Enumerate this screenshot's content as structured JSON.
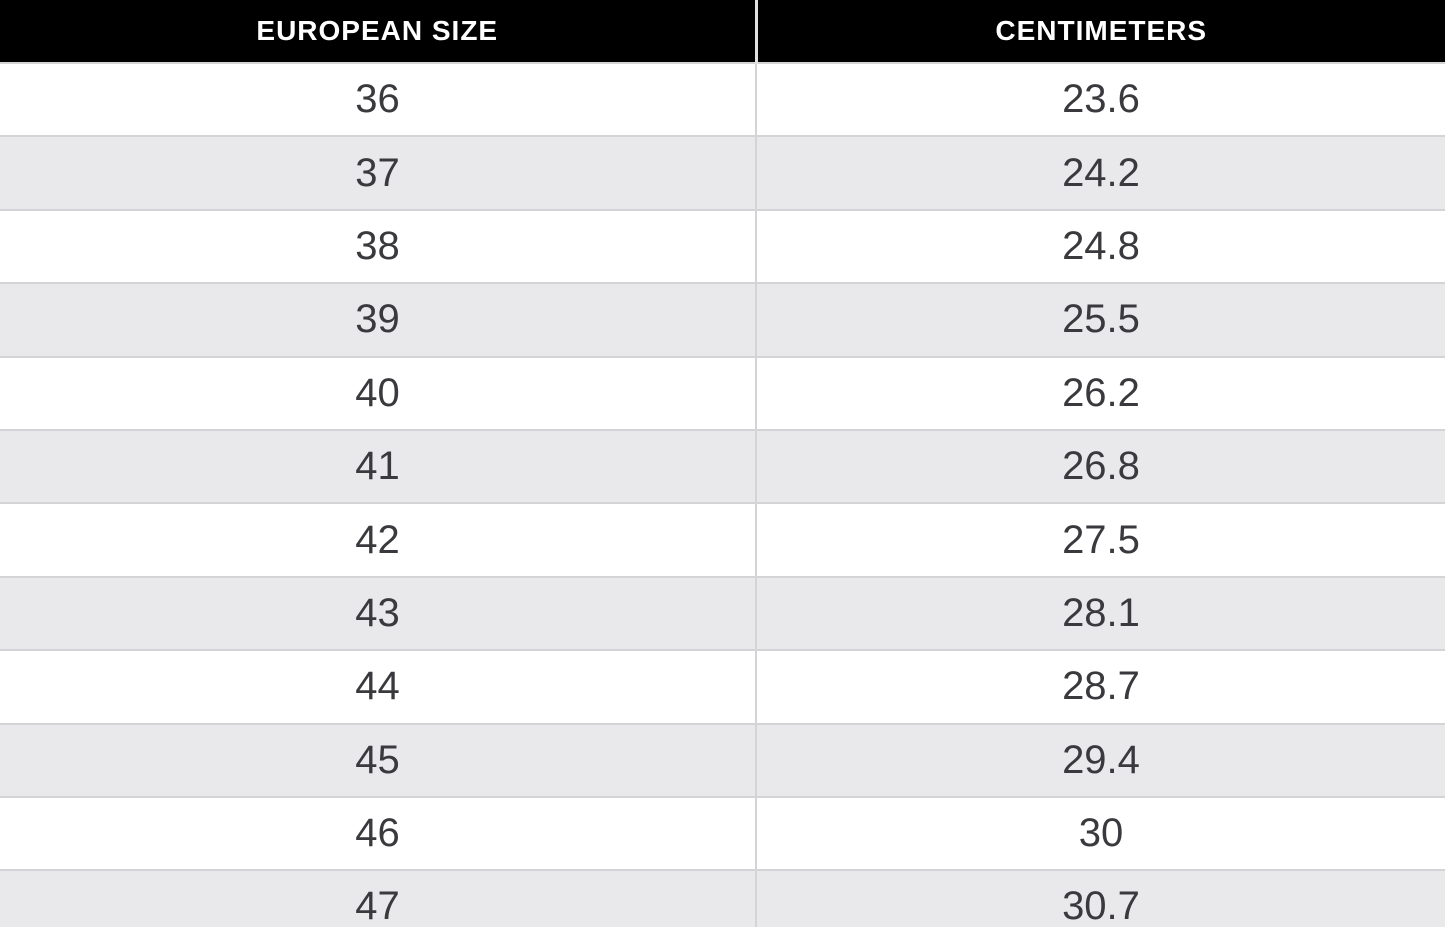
{
  "chart_data": {
    "type": "table",
    "columns": [
      "EUROPEAN SIZE",
      "CENTIMETERS"
    ],
    "rows": [
      [
        "36",
        "23.6"
      ],
      [
        "37",
        "24.2"
      ],
      [
        "38",
        "24.8"
      ],
      [
        "39",
        "25.5"
      ],
      [
        "40",
        "26.2"
      ],
      [
        "41",
        "26.8"
      ],
      [
        "42",
        "27.5"
      ],
      [
        "43",
        "28.1"
      ],
      [
        "44",
        "28.7"
      ],
      [
        "45",
        "29.4"
      ],
      [
        "46",
        "30"
      ],
      [
        "47",
        "30.7"
      ]
    ]
  },
  "colors": {
    "header_bg": "#000000",
    "header_text": "#ffffff",
    "row_bg": "#ffffff",
    "row_alt_bg": "#e9e9eb",
    "border": "#d4d4d6",
    "cell_text": "#3a3a3e"
  }
}
